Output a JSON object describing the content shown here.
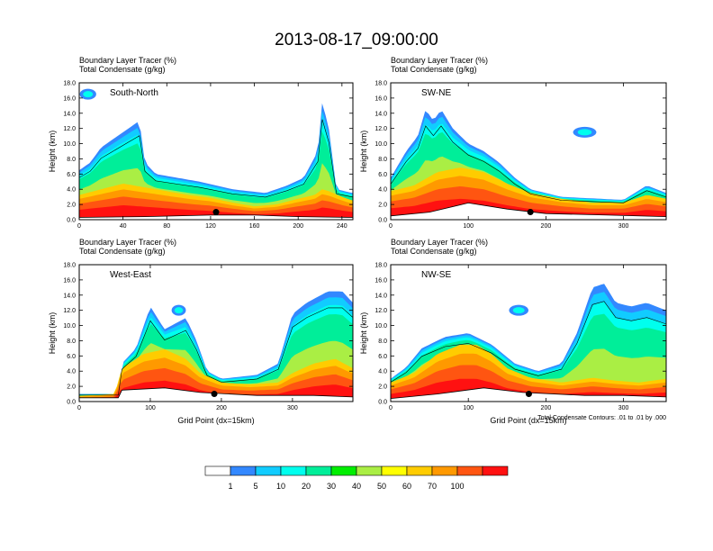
{
  "figure": {
    "title": "2013-08-17_09:00:00",
    "contour_note": "Total Condensate Contours: .01 to .01 by .000"
  },
  "colors": {
    "levels": [
      "#ffffff",
      "#3388ff",
      "#11ccff",
      "#00ffee",
      "#00ee99",
      "#00ee00",
      "#aaee44",
      "#ffff00",
      "#ffcc00",
      "#ff9900",
      "#ff5511",
      "#ff1111"
    ],
    "frame": "#000000"
  },
  "colorbar": {
    "labels": [
      "1",
      "5",
      "10",
      "20",
      "30",
      "40",
      "50",
      "60",
      "70",
      "100"
    ]
  },
  "chart_data": [
    {
      "type": "heatmap",
      "panel_label": "South-North",
      "header_lines": [
        "Boundary Layer Tracer   (%)",
        "Total Condensate   (g/kg)"
      ],
      "ylabel": "Height (km)",
      "xlabel": "",
      "xlim": [
        0,
        250
      ],
      "ylim": [
        0,
        18
      ],
      "xticks": [
        "0",
        "40",
        "80",
        "120",
        "160",
        "200",
        "240"
      ],
      "yticks": [
        "0.0",
        "2.0",
        "4.0",
        "6.0",
        "8.0",
        "10.0",
        "12.0",
        "14.0",
        "16.0",
        "18.0"
      ],
      "pbl_top_km": [
        [
          0,
          2.6
        ],
        [
          20,
          3.2
        ],
        [
          40,
          3.8
        ],
        [
          60,
          3.4
        ],
        [
          80,
          3.0
        ],
        [
          100,
          2.6
        ],
        [
          120,
          2.3
        ],
        [
          140,
          1.8
        ],
        [
          160,
          1.4
        ],
        [
          180,
          1.6
        ],
        [
          200,
          2.2
        ],
        [
          215,
          2.6
        ],
        [
          222,
          3.2
        ],
        [
          228,
          3.0
        ],
        [
          240,
          2.4
        ],
        [
          250,
          2.0
        ]
      ],
      "cloud_tops_km": [
        [
          0,
          6.5
        ],
        [
          10,
          7.5
        ],
        [
          20,
          9.5
        ],
        [
          30,
          10.5
        ],
        [
          45,
          12.0
        ],
        [
          55,
          13.0
        ],
        [
          60,
          7.5
        ],
        [
          70,
          6.0
        ],
        [
          90,
          5.5
        ],
        [
          110,
          5.0
        ],
        [
          140,
          4.0
        ],
        [
          170,
          3.5
        ],
        [
          190,
          4.5
        ],
        [
          205,
          5.5
        ],
        [
          218,
          9.0
        ],
        [
          222,
          15.5
        ],
        [
          228,
          12.0
        ],
        [
          235,
          4.0
        ],
        [
          250,
          3.5
        ]
      ],
      "upper_cloud_km": [
        [
          0,
          16.5
        ],
        [
          8,
          16.5
        ],
        [
          15,
          15.5
        ]
      ],
      "terrain_km": [
        [
          0,
          0.3
        ],
        [
          60,
          0.4
        ],
        [
          120,
          0.6
        ],
        [
          160,
          0.6
        ],
        [
          200,
          0.4
        ],
        [
          250,
          0.3
        ]
      ],
      "marker": [
        125,
        1.0
      ]
    },
    {
      "type": "heatmap",
      "panel_label": "SW-NE",
      "header_lines": [
        "Boundary Layer Tracer   (%)",
        "Total Condensate   (g/kg)"
      ],
      "ylabel": "Height (km)",
      "xlabel": "",
      "xlim": [
        0,
        355
      ],
      "ylim": [
        0,
        18
      ],
      "xticks": [
        "0",
        "100",
        "200",
        "300"
      ],
      "yticks": [
        "0.0",
        "2.0",
        "4.0",
        "6.0",
        "8.0",
        "10.0",
        "12.0",
        "14.0",
        "16.0",
        "18.0"
      ],
      "pbl_top_km": [
        [
          0,
          3.0
        ],
        [
          30,
          3.6
        ],
        [
          60,
          5.0
        ],
        [
          90,
          5.5
        ],
        [
          120,
          5.0
        ],
        [
          150,
          3.8
        ],
        [
          180,
          2.8
        ],
        [
          220,
          2.2
        ],
        [
          260,
          1.8
        ],
        [
          300,
          1.8
        ],
        [
          330,
          2.6
        ],
        [
          355,
          2.2
        ]
      ],
      "cloud_tops_km": [
        [
          0,
          5.5
        ],
        [
          20,
          9.0
        ],
        [
          35,
          11.0
        ],
        [
          45,
          14.5
        ],
        [
          55,
          13.0
        ],
        [
          65,
          14.5
        ],
        [
          80,
          12.0
        ],
        [
          100,
          10.0
        ],
        [
          120,
          9.0
        ],
        [
          140,
          7.5
        ],
        [
          160,
          5.5
        ],
        [
          180,
          4.0
        ],
        [
          220,
          3.0
        ],
        [
          300,
          2.6
        ],
        [
          330,
          4.5
        ],
        [
          355,
          3.5
        ]
      ],
      "upper_cloud_km": [
        [
          235,
          11.0
        ],
        [
          250,
          11.5
        ],
        [
          265,
          11.0
        ]
      ],
      "terrain_km": [
        [
          0,
          0.5
        ],
        [
          50,
          1.0
        ],
        [
          100,
          2.2
        ],
        [
          150,
          1.4
        ],
        [
          200,
          0.8
        ],
        [
          280,
          0.6
        ],
        [
          355,
          0.4
        ]
      ],
      "marker": [
        180,
        1.0
      ]
    },
    {
      "type": "heatmap",
      "panel_label": "West-East",
      "header_lines": [
        "Boundary Layer Tracer   (%)",
        "Total Condensate   (g/kg)"
      ],
      "ylabel": "Height (km)",
      "xlabel": "Grid Point (dx=15km)",
      "xlim": [
        0,
        385
      ],
      "ylim": [
        0,
        18
      ],
      "xticks": [
        "0",
        "100",
        "200",
        "300"
      ],
      "yticks": [
        "0.0",
        "2.0",
        "4.0",
        "6.0",
        "8.0",
        "10.0",
        "12.0",
        "14.0",
        "16.0",
        "18.0"
      ],
      "pbl_top_km": [
        [
          0,
          0.6
        ],
        [
          50,
          0.8
        ],
        [
          60,
          3.5
        ],
        [
          90,
          5.0
        ],
        [
          120,
          5.5
        ],
        [
          150,
          4.5
        ],
        [
          170,
          3.0
        ],
        [
          200,
          2.0
        ],
        [
          240,
          1.8
        ],
        [
          280,
          2.0
        ],
        [
          300,
          3.0
        ],
        [
          330,
          4.0
        ],
        [
          360,
          4.5
        ],
        [
          385,
          3.5
        ]
      ],
      "cloud_tops_km": [
        [
          0,
          1.0
        ],
        [
          55,
          1.0
        ],
        [
          60,
          5.0
        ],
        [
          80,
          7.0
        ],
        [
          100,
          12.5
        ],
        [
          120,
          9.5
        ],
        [
          150,
          11.0
        ],
        [
          165,
          8.0
        ],
        [
          180,
          4.0
        ],
        [
          200,
          3.0
        ],
        [
          250,
          3.5
        ],
        [
          280,
          5.0
        ],
        [
          300,
          11.5
        ],
        [
          320,
          13.0
        ],
        [
          350,
          14.5
        ],
        [
          370,
          14.5
        ],
        [
          385,
          13.0
        ]
      ],
      "upper_cloud_km": [
        [
          130,
          11.0
        ],
        [
          140,
          12.0
        ],
        [
          150,
          11.0
        ]
      ],
      "terrain_km": [
        [
          0,
          0.5
        ],
        [
          55,
          0.5
        ],
        [
          60,
          1.5
        ],
        [
          120,
          1.8
        ],
        [
          170,
          1.2
        ],
        [
          250,
          0.8
        ],
        [
          330,
          0.8
        ],
        [
          385,
          0.6
        ]
      ],
      "marker": [
        190,
        1.0
      ]
    },
    {
      "type": "heatmap",
      "panel_label": "NW-SE",
      "header_lines": [
        "Boundary Layer Tracer   (%)",
        "Total Condensate   (g/kg)"
      ],
      "ylabel": "Height (km)",
      "xlabel": "Grid Point (dx=15km)",
      "xlim": [
        0,
        355
      ],
      "ylim": [
        0,
        18
      ],
      "xticks": [
        "0",
        "100",
        "200",
        "300"
      ],
      "yticks": [
        "0.0",
        "2.0",
        "4.0",
        "6.0",
        "8.0",
        "10.0",
        "12.0",
        "14.0",
        "16.0",
        "18.0"
      ],
      "pbl_top_km": [
        [
          0,
          2.0
        ],
        [
          30,
          3.0
        ],
        [
          60,
          5.0
        ],
        [
          90,
          6.0
        ],
        [
          110,
          6.0
        ],
        [
          130,
          5.0
        ],
        [
          150,
          3.5
        ],
        [
          180,
          2.5
        ],
        [
          220,
          2.0
        ],
        [
          260,
          2.5
        ],
        [
          290,
          2.2
        ],
        [
          320,
          2.0
        ],
        [
          355,
          2.4
        ]
      ],
      "cloud_tops_km": [
        [
          0,
          3.0
        ],
        [
          20,
          4.5
        ],
        [
          40,
          7.0
        ],
        [
          70,
          8.5
        ],
        [
          100,
          9.0
        ],
        [
          130,
          7.5
        ],
        [
          160,
          5.0
        ],
        [
          190,
          4.0
        ],
        [
          220,
          5.0
        ],
        [
          240,
          9.0
        ],
        [
          250,
          12.0
        ],
        [
          260,
          15.0
        ],
        [
          275,
          15.5
        ],
        [
          290,
          13.0
        ],
        [
          310,
          12.5
        ],
        [
          330,
          13.0
        ],
        [
          355,
          12.0
        ]
      ],
      "upper_cloud_km": [
        [
          150,
          11.0
        ],
        [
          165,
          12.0
        ],
        [
          175,
          11.5
        ]
      ],
      "terrain_km": [
        [
          0,
          0.4
        ],
        [
          60,
          1.0
        ],
        [
          120,
          1.8
        ],
        [
          170,
          1.2
        ],
        [
          250,
          0.8
        ],
        [
          300,
          0.8
        ],
        [
          355,
          0.6
        ]
      ],
      "marker": [
        178,
        1.0
      ]
    }
  ]
}
